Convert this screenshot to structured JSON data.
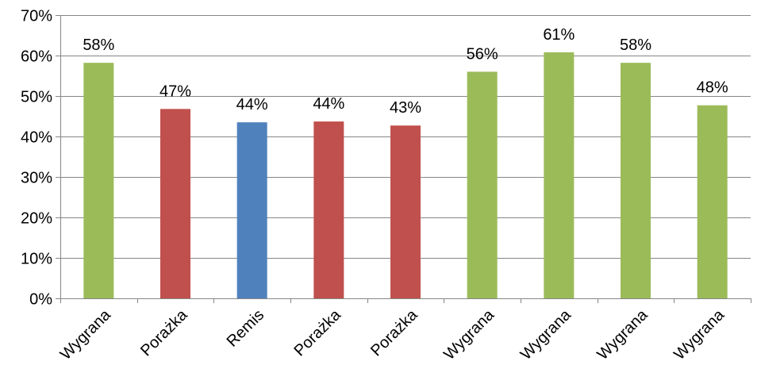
{
  "chart_data": {
    "type": "bar",
    "title": "",
    "xlabel": "",
    "ylabel": "",
    "ylim": [
      0,
      70
    ],
    "yticks": [
      0,
      10,
      20,
      30,
      40,
      50,
      60,
      70
    ],
    "ytick_labels": [
      "0%",
      "10%",
      "20%",
      "30%",
      "40%",
      "50%",
      "60%",
      "70%"
    ],
    "grid": true,
    "legend": "none",
    "categories": [
      "Wygrana",
      "Porażka",
      "Remis",
      "Porażka",
      "Porażka",
      "Wygrana",
      "Wygrana",
      "Wygrana",
      "Wygrana"
    ],
    "values": [
      58.2,
      46.8,
      43.5,
      43.7,
      42.7,
      56.0,
      60.8,
      58.2,
      47.7
    ],
    "data_labels": [
      "58%",
      "47%",
      "44%",
      "44%",
      "43%",
      "56%",
      "61%",
      "58%",
      "48%"
    ],
    "colors": {
      "Wygrana": "#9bbb59",
      "Porażka": "#c0504d",
      "Remis": "#4f81bd"
    },
    "axis_color": "#868686",
    "grid_color": "#868686"
  }
}
